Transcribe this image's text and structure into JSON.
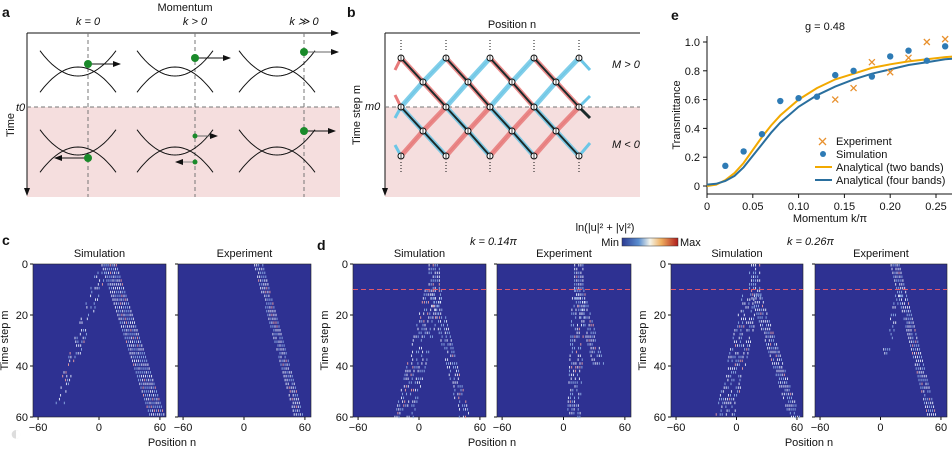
{
  "panel_labels": {
    "a": "a",
    "b": "b",
    "c": "c",
    "d": "d",
    "e": "e"
  },
  "panel_a": {
    "x_axis": "Momentum",
    "y_axis": "Time",
    "k_labels": [
      "k = 0",
      "k > 0",
      "k ≫ 0"
    ],
    "t0": "t0"
  },
  "panel_b": {
    "x_axis": "Position n",
    "y_axis": "Time step m",
    "m0": "m0",
    "upper": "M > 0",
    "lower": "M < 0"
  },
  "colorbar": {
    "label": "ln(|u|² + |v|²)",
    "min": "Min",
    "max": "Max"
  },
  "heatmaps": {
    "y_label": "Time step m",
    "x_label": "Position n",
    "y_ticks": [
      "0",
      "20",
      "40",
      "60"
    ],
    "x_ticks": [
      "−60",
      "0",
      "60"
    ],
    "c_titles": [
      "Simulation",
      "Experiment"
    ],
    "d_titles": [
      "Simulation",
      "Experiment",
      "Simulation",
      "Experiment"
    ],
    "k_labels": [
      "k = 0.14π",
      "k = 0.26π"
    ]
  },
  "watermark": "大数跨境",
  "chart_data": {
    "type": "scatter",
    "title": "g = 0.48",
    "xlabel": "Momentum k/π",
    "ylabel": "Transmittance",
    "xlim": [
      0,
      0.27
    ],
    "ylim": [
      -0.03,
      1.05
    ],
    "x_ticks": [
      "0",
      "0.05",
      "0.10",
      "0.15",
      "0.20",
      "0.25"
    ],
    "y_ticks": [
      "0",
      "0.2",
      "0.4",
      "0.6",
      "0.8",
      "1.0"
    ],
    "legend_position": "bottom-right",
    "series": [
      {
        "name": "Experiment",
        "kind": "x-marker",
        "color": "#e8912e",
        "x": [
          0.14,
          0.16,
          0.18,
          0.2,
          0.22,
          0.24,
          0.26
        ],
        "y": [
          0.6,
          0.68,
          0.86,
          0.79,
          0.89,
          1.0,
          1.02
        ]
      },
      {
        "name": "Simulation",
        "kind": "dot",
        "color": "#2e7bb5",
        "x": [
          0.02,
          0.04,
          0.06,
          0.08,
          0.1,
          0.12,
          0.14,
          0.16,
          0.18,
          0.2,
          0.22,
          0.24,
          0.26
        ],
        "y": [
          0.14,
          0.24,
          0.36,
          0.59,
          0.61,
          0.62,
          0.77,
          0.8,
          0.76,
          0.9,
          0.94,
          0.87,
          0.97
        ]
      },
      {
        "name": "Analytical (two bands)",
        "kind": "line",
        "color": "#f2a900",
        "x": [
          0,
          0.01,
          0.02,
          0.03,
          0.04,
          0.05,
          0.06,
          0.07,
          0.08,
          0.1,
          0.12,
          0.14,
          0.16,
          0.18,
          0.2,
          0.22,
          0.24,
          0.26,
          0.27
        ],
        "y": [
          0.0,
          0.01,
          0.04,
          0.09,
          0.16,
          0.25,
          0.34,
          0.42,
          0.49,
          0.6,
          0.68,
          0.74,
          0.78,
          0.82,
          0.845,
          0.865,
          0.88,
          0.895,
          0.9
        ]
      },
      {
        "name": "Analytical (four bands)",
        "kind": "line",
        "color": "#2a6f9e",
        "x": [
          0,
          0.01,
          0.02,
          0.03,
          0.04,
          0.05,
          0.06,
          0.07,
          0.08,
          0.1,
          0.12,
          0.14,
          0.16,
          0.18,
          0.2,
          0.22,
          0.24,
          0.26,
          0.27
        ],
        "y": [
          0.01,
          0.015,
          0.035,
          0.07,
          0.13,
          0.21,
          0.29,
          0.37,
          0.44,
          0.55,
          0.63,
          0.69,
          0.74,
          0.78,
          0.81,
          0.84,
          0.86,
          0.88,
          0.885
        ]
      }
    ]
  }
}
